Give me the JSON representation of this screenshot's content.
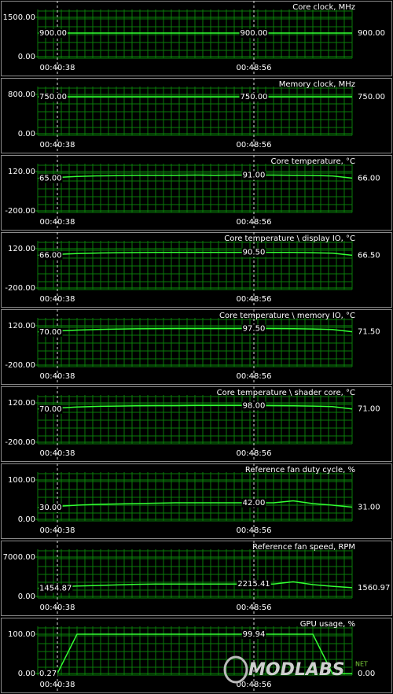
{
  "chart_data": [
    {
      "type": "line",
      "title": "Core clock, MHz",
      "color": "#33ff33",
      "categories": [
        null,
        "00:40:38",
        null,
        null,
        null,
        null,
        null,
        null,
        null,
        null,
        null,
        "00:48:56",
        null,
        null,
        null,
        null,
        null
      ],
      "values": [
        900,
        900,
        900,
        900,
        900,
        900,
        900,
        900,
        900,
        900,
        900,
        900,
        900,
        900,
        900,
        900,
        900
      ],
      "value_labels": [
        "900.00",
        null,
        null,
        null,
        null,
        null,
        null,
        null,
        null,
        null,
        null,
        "900.00",
        null,
        null,
        null,
        null,
        "900.00"
      ],
      "ylim": [
        0,
        1500
      ],
      "yticks": [
        {
          "value": 0,
          "label": "0.00"
        },
        {
          "value": 1500,
          "label": "1500.00"
        }
      ]
    },
    {
      "type": "line",
      "title": "Memory clock, MHz",
      "color": "#33ff33",
      "categories": [
        null,
        "00:40:38",
        null,
        null,
        null,
        null,
        null,
        null,
        null,
        null,
        null,
        "00:48:56",
        null,
        null,
        null,
        null,
        null
      ],
      "values": [
        750,
        750,
        750,
        750,
        750,
        750,
        750,
        750,
        750,
        750,
        750,
        750,
        750,
        750,
        750,
        750,
        750
      ],
      "value_labels": [
        "750.00",
        null,
        null,
        null,
        null,
        null,
        null,
        null,
        null,
        null,
        null,
        "750.00",
        null,
        null,
        null,
        null,
        "750.00"
      ],
      "ylim": [
        0,
        800
      ],
      "yticks": [
        {
          "value": 0,
          "label": "0.00"
        },
        {
          "value": 800,
          "label": "800.00"
        }
      ]
    },
    {
      "type": "line",
      "title": "Core temperature, °C",
      "color": "#33ff33",
      "categories": [
        null,
        "00:40:38",
        null,
        null,
        null,
        null,
        null,
        null,
        null,
        null,
        null,
        "00:48:56",
        null,
        null,
        null,
        null,
        null
      ],
      "values": [
        65,
        72,
        80,
        85,
        87,
        89,
        90,
        90,
        91,
        90,
        91,
        91,
        91,
        90,
        88,
        84,
        66
      ],
      "value_labels": [
        "65.00",
        null,
        null,
        null,
        null,
        null,
        null,
        null,
        null,
        null,
        null,
        "91.00",
        null,
        null,
        null,
        null,
        "66.00"
      ],
      "ylim": [
        -200,
        120
      ],
      "yticks": [
        {
          "value": -200,
          "label": "-200.00"
        },
        {
          "value": 120,
          "label": "120.00"
        }
      ]
    },
    {
      "type": "line",
      "title": "Core temperature \\ display IO, °C",
      "color": "#33ff33",
      "categories": [
        null,
        "00:40:38",
        null,
        null,
        null,
        null,
        null,
        null,
        null,
        null,
        null,
        "00:48:56",
        null,
        null,
        null,
        null,
        null
      ],
      "values": [
        66,
        73,
        80,
        84,
        86,
        88,
        89,
        90,
        90,
        90,
        90,
        90.5,
        90,
        89,
        87,
        83,
        66.5
      ],
      "value_labels": [
        "66.00",
        null,
        null,
        null,
        null,
        null,
        null,
        null,
        null,
        null,
        null,
        "90.50",
        null,
        null,
        null,
        null,
        "66.50"
      ],
      "ylim": [
        -200,
        120
      ],
      "yticks": [
        {
          "value": -200,
          "label": "-200.00"
        },
        {
          "value": 120,
          "label": "120.00"
        }
      ]
    },
    {
      "type": "line",
      "title": "Core temperature \\ memory IO, °C",
      "color": "#33ff33",
      "categories": [
        null,
        "00:40:38",
        null,
        null,
        null,
        null,
        null,
        null,
        null,
        null,
        null,
        "00:48:56",
        null,
        null,
        null,
        null,
        null
      ],
      "values": [
        70,
        78,
        85,
        90,
        93,
        95,
        96,
        97,
        97,
        97,
        97,
        97.5,
        97,
        96,
        94,
        89,
        71.5
      ],
      "value_labels": [
        "70.00",
        null,
        null,
        null,
        null,
        null,
        null,
        null,
        null,
        null,
        null,
        "97.50",
        null,
        null,
        null,
        null,
        "71.50"
      ],
      "ylim": [
        -200,
        120
      ],
      "yticks": [
        {
          "value": -200,
          "label": "-200.00"
        },
        {
          "value": 120,
          "label": "120.00"
        }
      ]
    },
    {
      "type": "line",
      "title": "Core temperature \\ shader core, °C",
      "color": "#33ff33",
      "categories": [
        null,
        "00:40:38",
        null,
        null,
        null,
        null,
        null,
        null,
        null,
        null,
        null,
        "00:48:56",
        null,
        null,
        null,
        null,
        null
      ],
      "values": [
        70,
        78,
        86,
        91,
        94,
        96,
        97,
        97,
        98,
        98,
        98,
        98,
        97,
        96,
        94,
        89,
        71
      ],
      "value_labels": [
        "70.00",
        null,
        null,
        null,
        null,
        null,
        null,
        null,
        null,
        null,
        null,
        "98.00",
        null,
        null,
        null,
        null,
        "71.00"
      ],
      "ylim": [
        -200,
        120
      ],
      "yticks": [
        {
          "value": -200,
          "label": "-200.00"
        },
        {
          "value": 120,
          "label": "120.00"
        }
      ]
    },
    {
      "type": "line",
      "title": "Reference fan duty cycle, %",
      "color": "#33ff33",
      "categories": [
        null,
        "00:40:38",
        null,
        null,
        null,
        null,
        null,
        null,
        null,
        null,
        null,
        "00:48:56",
        null,
        null,
        null,
        null,
        null
      ],
      "values": [
        30,
        33,
        36,
        38,
        39,
        40,
        41,
        42,
        42,
        42,
        42,
        42,
        42,
        47,
        40,
        36,
        31
      ],
      "value_labels": [
        "30.00",
        null,
        null,
        null,
        null,
        null,
        null,
        null,
        null,
        null,
        null,
        "42.00",
        null,
        null,
        null,
        null,
        "31.00"
      ],
      "ylim": [
        0,
        100
      ],
      "yticks": [
        {
          "value": 0,
          "label": "0.00"
        },
        {
          "value": 100,
          "label": "100.00"
        }
      ]
    },
    {
      "type": "line",
      "title": "Reference fan speed, RPM",
      "color": "#33ff33",
      "categories": [
        null,
        "00:40:38",
        null,
        null,
        null,
        null,
        null,
        null,
        null,
        null,
        null,
        "00:48:56",
        null,
        null,
        null,
        null,
        null
      ],
      "values": [
        1454.87,
        1700,
        1850,
        1950,
        2050,
        2150,
        2200,
        2215,
        2215,
        2215,
        2215,
        2215.41,
        2215,
        2600,
        2100,
        1800,
        1560.97
      ],
      "value_labels": [
        "1454.87",
        null,
        null,
        null,
        null,
        null,
        null,
        null,
        null,
        null,
        null,
        "2215.41",
        null,
        null,
        null,
        null,
        "1560.97"
      ],
      "ylim": [
        0,
        7000
      ],
      "yticks": [
        {
          "value": 0,
          "label": "0.00"
        },
        {
          "value": 7000,
          "label": "7000.00"
        }
      ]
    },
    {
      "type": "line",
      "title": "GPU usage, %",
      "color": "#33ff33",
      "categories": [
        null,
        "00:40:38",
        null,
        null,
        null,
        null,
        null,
        null,
        null,
        null,
        null,
        "00:48:56",
        null,
        null,
        null,
        null,
        null
      ],
      "values": [
        0.27,
        0.27,
        100,
        100,
        100,
        100,
        100,
        100,
        100,
        100,
        100,
        99.94,
        100,
        100,
        100,
        0,
        0
      ],
      "value_labels": [
        "0.27",
        null,
        null,
        null,
        null,
        null,
        null,
        null,
        null,
        null,
        null,
        "99.94",
        null,
        null,
        null,
        null,
        "0.00"
      ],
      "ylim": [
        0,
        100
      ],
      "yticks": [
        {
          "value": 0,
          "label": "0.00"
        },
        {
          "value": 100,
          "label": "100.00"
        }
      ]
    }
  ],
  "watermark": {
    "name": "MODLABS",
    "suffix": "NET"
  }
}
